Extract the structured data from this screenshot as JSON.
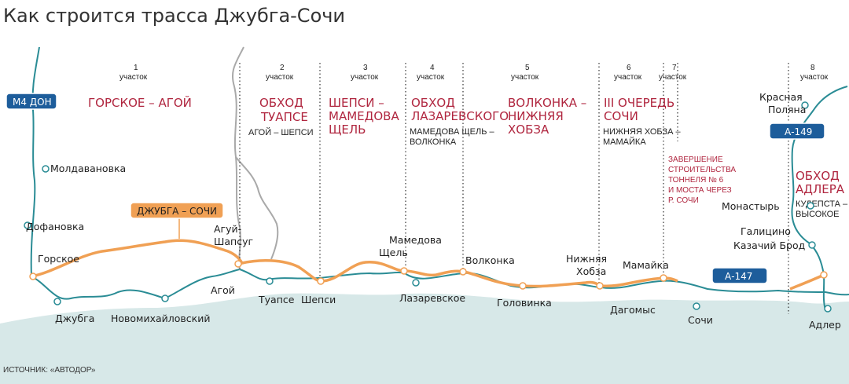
{
  "title": "Как строится трасса Джубга-Сочи",
  "source": "ИСТОЧНИК: «АВТОДОР»",
  "section_word": "участок",
  "sections": [
    {
      "num": "1",
      "name_lines": [
        "ГОРСКОЕ – АГОЙ"
      ],
      "sub_lines": []
    },
    {
      "num": "2",
      "name_lines": [
        "ОБХОД",
        "ТУАПСЕ"
      ],
      "sub_lines": [
        "АГОЙ – ШЕПСИ"
      ]
    },
    {
      "num": "3",
      "name_lines": [
        "ШЕПСИ –",
        "МАМЕДОВА",
        "ЩЕЛЬ"
      ],
      "sub_lines": []
    },
    {
      "num": "4",
      "name_lines": [
        "ОБХОД",
        "ЛАЗАРЕВСКОГО"
      ],
      "sub_lines": [
        "МАМЕДОВА ЩЕЛЬ –",
        "ВОЛКОНКА"
      ]
    },
    {
      "num": "5",
      "name_lines": [
        "ВОЛКОНКА –",
        "НИЖНЯЯ",
        "ХОБЗА"
      ],
      "sub_lines": []
    },
    {
      "num": "6",
      "name_lines": [
        "III ОЧЕРЕДЬ",
        "СОЧИ"
      ],
      "sub_lines": [
        "НИЖНЯЯ ХОБЗА –",
        "МАМАЙКА"
      ]
    },
    {
      "num": "7",
      "name_lines": [],
      "sub_lines": []
    },
    {
      "num": "8",
      "name_lines": [
        "ОБХОД",
        "АДЛЕРА"
      ],
      "sub_lines": [
        "КУДЕПСТА –",
        "ВЫСОКОЕ"
      ]
    }
  ],
  "note_lines": [
    "ЗАВЕРШЕНИЕ",
    "СТРОИТЕЛЬСТВА",
    "ТОННЕЛЯ № 6",
    "И МОСТА ЧЕРЕЗ",
    "Р. СОЧИ"
  ],
  "badges": {
    "m4": "М4 ДОН",
    "a147": "А-147",
    "a149": "А-149",
    "route": "ДЖУБГА – СОЧИ"
  },
  "places": {
    "moldavanovka": "Молдавановка",
    "dofanovka": "Дофановка",
    "gorskoe": "Горское",
    "dzhubga": "Джубга",
    "novomikhaylovsky": "Новомихайловский",
    "agoy": "Агой",
    "agui_shapsug": [
      "Агуй-",
      "Шапсуг"
    ],
    "tuapse": "Туапсе",
    "shepsi": "Шепси",
    "mamedova_shchel": [
      "Мамедова",
      "Щель"
    ],
    "lazarevskoe": "Лазаревское",
    "volkonka": "Волконка",
    "golovinka": "Головинка",
    "nizhnyaya_khobza": [
      "Нижняя",
      "Хобза"
    ],
    "mamayka": "Мамайка",
    "dagomys": "Дагомыс",
    "sochi": "Сочи",
    "krasnaya_polyana": [
      "Красная",
      "Поляна"
    ],
    "monastyr": "Монастырь",
    "galitsino": "Галицино",
    "kazachiy_brod": "Казачий Брод",
    "adler": "Адлер"
  },
  "colors": {
    "route": "#f0a054",
    "road": "#2a8c95",
    "sea": "#d7e8e8",
    "badge_blue": "#1d5d9b",
    "accent": "#b0263f",
    "mountain_road": "#a9a9a9"
  }
}
